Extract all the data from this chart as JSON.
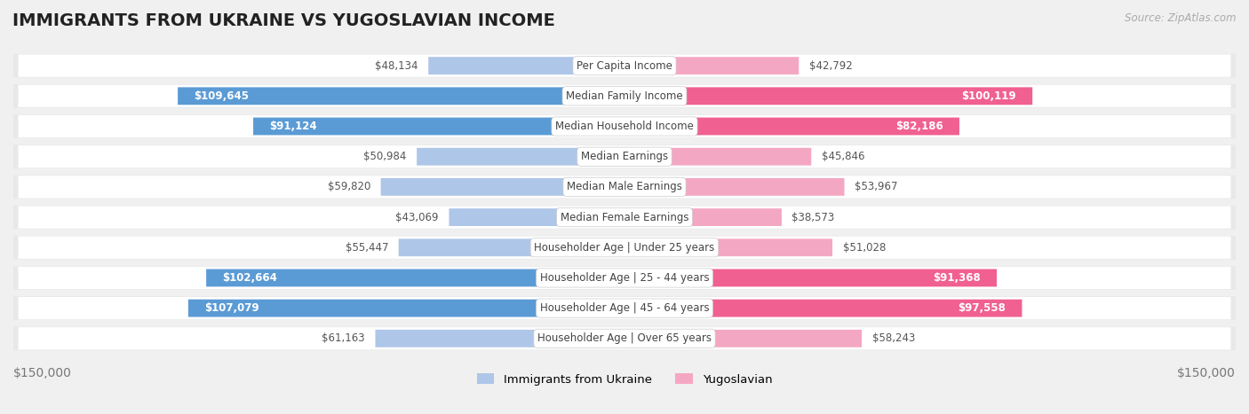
{
  "title": "IMMIGRANTS FROM UKRAINE VS YUGOSLAVIAN INCOME",
  "source": "Source: ZipAtlas.com",
  "categories": [
    "Per Capita Income",
    "Median Family Income",
    "Median Household Income",
    "Median Earnings",
    "Median Male Earnings",
    "Median Female Earnings",
    "Householder Age | Under 25 years",
    "Householder Age | 25 - 44 years",
    "Householder Age | 45 - 64 years",
    "Householder Age | Over 65 years"
  ],
  "ukraine_values": [
    48134,
    109645,
    91124,
    50984,
    59820,
    43069,
    55447,
    102664,
    107079,
    61163
  ],
  "yugoslavian_values": [
    42792,
    100119,
    82186,
    45846,
    53967,
    38573,
    51028,
    91368,
    97558,
    58243
  ],
  "ukraine_labels": [
    "$48,134",
    "$109,645",
    "$91,124",
    "$50,984",
    "$59,820",
    "$43,069",
    "$55,447",
    "$102,664",
    "$107,079",
    "$61,163"
  ],
  "yugoslavian_labels": [
    "$42,792",
    "$100,119",
    "$82,186",
    "$45,846",
    "$53,967",
    "$38,573",
    "$51,028",
    "$91,368",
    "$97,558",
    "$58,243"
  ],
  "ukraine_color_light": "#aec6e8",
  "ukraine_color_dark": "#5b9bd5",
  "yugoslavian_color_light": "#f4a7c3",
  "yugoslavian_color_dark": "#f06090",
  "ukraine_threshold": 75000,
  "yugoslavian_threshold": 75000,
  "max_value": 150000,
  "x_label_left": "$150,000",
  "x_label_right": "$150,000",
  "legend_ukraine": "Immigrants from Ukraine",
  "legend_yugoslavian": "Yugoslavian",
  "background_color": "#f0f0f0",
  "row_background": "#e8e8e8",
  "row_inner_background": "#ffffff",
  "title_fontsize": 14,
  "label_fontsize": 9,
  "tick_fontsize": 10
}
